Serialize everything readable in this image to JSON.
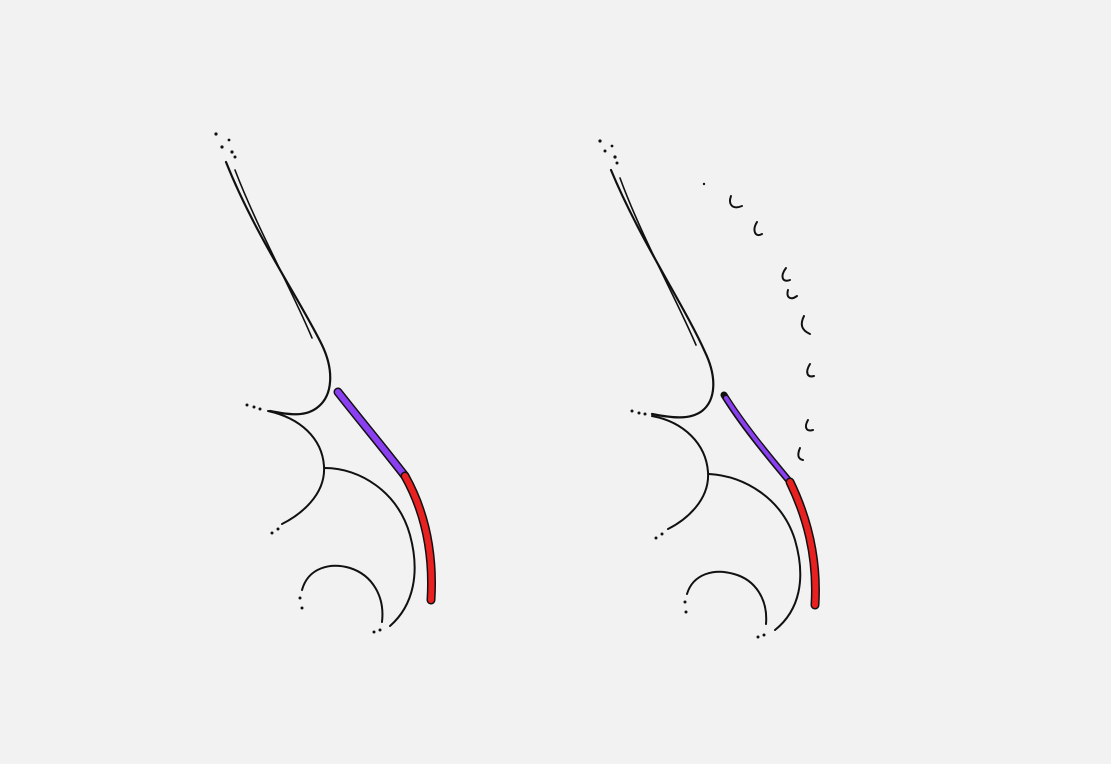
{
  "drawing": {
    "background": "#f2f2f2",
    "ink_color": "#111111",
    "highlight_upper_color": "#8a3ff0",
    "highlight_lower_color": "#e8201f",
    "panels": [
      {
        "id": "left",
        "has_dashed_arc": false
      },
      {
        "id": "right",
        "has_dashed_arc": true
      }
    ]
  }
}
